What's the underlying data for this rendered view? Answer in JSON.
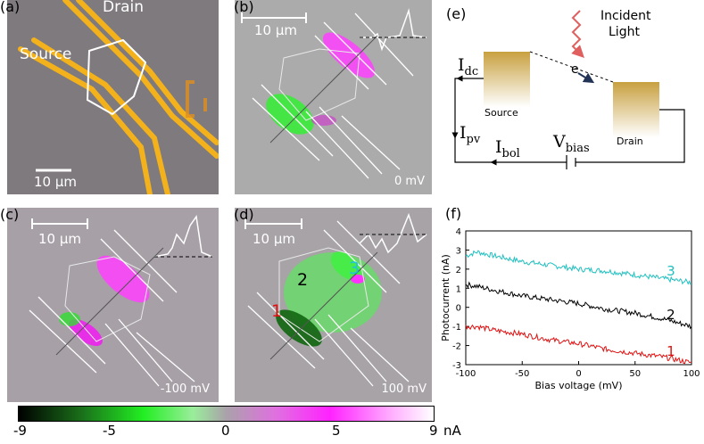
{
  "panels": {
    "a": {
      "label": "(a)",
      "drain": "Drain",
      "source": "Source",
      "scale": "10 µm"
    },
    "b": {
      "label": "(b)",
      "scale": "10 µm",
      "bias": "0 mV"
    },
    "c": {
      "label": "(c)",
      "scale": "10 µm",
      "bias": "-100 mV"
    },
    "d": {
      "label": "(d)",
      "scale": "10 µm",
      "bias": "100 mV",
      "region1": "1",
      "region2": "2",
      "region3": "3"
    },
    "e": {
      "label": "(e)",
      "incident": "Incident",
      "light": "Light",
      "idc_main": "I",
      "idc_sub": "dc",
      "electron": "e",
      "source": "Source",
      "drain": "Drain",
      "ipv_main": "I",
      "ipv_sub": "pv",
      "ibol_main": "I",
      "ibol_sub": "bol",
      "vbias_main": "V",
      "vbias_sub": "bias"
    },
    "f": {
      "label": "(f)"
    }
  },
  "colorbar": {
    "ticks": [
      "-9",
      "-5",
      "0",
      "5",
      "9"
    ],
    "unit": "nA"
  },
  "chart_data": {
    "type": "line",
    "xlabel": "Bias voltage (mV)",
    "ylabel": "Photocurrent (nA)",
    "xlim": [
      -100,
      100
    ],
    "ylim": [
      -3,
      4
    ],
    "xticks": [
      "-100",
      "-50",
      "0",
      "50",
      "100"
    ],
    "yticks": [
      "4",
      "3",
      "2",
      "1",
      "0",
      "-1",
      "-2",
      "-3"
    ],
    "series": [
      {
        "name": "3",
        "color": "#20c0c0",
        "x": [
          -100,
          -90,
          -75,
          -50,
          -25,
          0,
          25,
          50,
          75,
          100
        ],
        "values": [
          2.7,
          2.9,
          2.7,
          2.4,
          2.2,
          2.0,
          1.9,
          1.7,
          1.5,
          1.3
        ]
      },
      {
        "name": "2",
        "color": "#000000",
        "x": [
          -100,
          -90,
          -75,
          -50,
          -25,
          0,
          25,
          50,
          75,
          100
        ],
        "values": [
          1.2,
          1.1,
          0.9,
          0.6,
          0.4,
          0.2,
          -0.1,
          -0.3,
          -0.6,
          -1.0
        ]
      },
      {
        "name": "1",
        "color": "#e01010",
        "x": [
          -100,
          -90,
          -75,
          -50,
          -25,
          0,
          25,
          50,
          75,
          100
        ],
        "values": [
          -1.0,
          -1.0,
          -1.2,
          -1.4,
          -1.7,
          -1.9,
          -2.2,
          -2.4,
          -2.6,
          -2.9
        ]
      }
    ]
  }
}
